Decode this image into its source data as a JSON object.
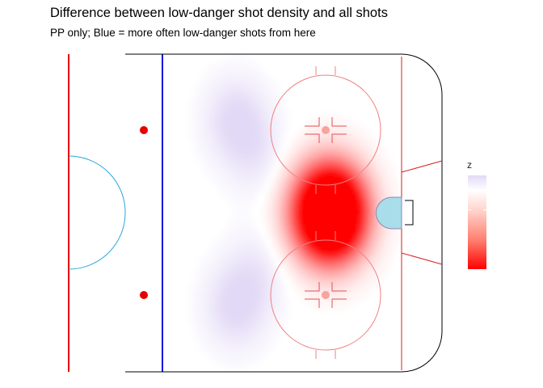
{
  "chart_data": {
    "type": "heatmap",
    "title": "Difference between low-danger shot density and all shots",
    "subtitle": "PP only; Blue = more often low-danger shots from here",
    "legend": {
      "title": "z",
      "placement": "right",
      "colors": [
        "#e2d9f6",
        "#ffffff",
        "#ff0000"
      ]
    },
    "x": [
      0,
      100
    ],
    "y": [
      -42.5,
      42.5
    ],
    "hotspots": [
      {
        "x": 77,
        "y": 0,
        "z": -1.0
      },
      {
        "x": 73,
        "y": 4,
        "z": -0.55
      },
      {
        "x": 73,
        "y": -4,
        "z": -0.55
      },
      {
        "x": 67,
        "y": 0,
        "z": -0.3
      },
      {
        "x": 40,
        "y": 25,
        "z": 0.15
      },
      {
        "x": 40,
        "y": -25,
        "z": 0.15
      },
      {
        "x": 48,
        "y": 15,
        "z": 0.08
      },
      {
        "x": 48,
        "y": -15,
        "z": 0.08
      }
    ]
  }
}
